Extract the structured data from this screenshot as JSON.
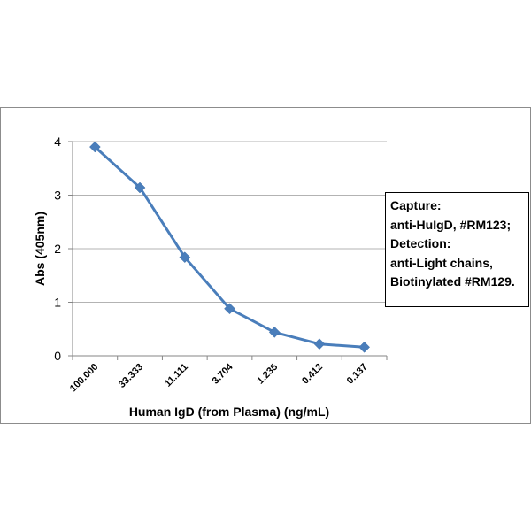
{
  "chart_data": {
    "type": "line",
    "title": "",
    "xlabel": "Human IgD (from Plasma) (ng/mL)",
    "ylabel": "Abs (405nm)",
    "categories": [
      "100.000",
      "33.333",
      "11.111",
      "3.704",
      "1.235",
      "0.412",
      "0.137"
    ],
    "series": [
      {
        "values": [
          3.9,
          3.14,
          1.84,
          0.88,
          0.44,
          0.22,
          0.16
        ]
      }
    ],
    "ylim": [
      0,
      4
    ],
    "yticks": [
      0,
      1,
      2,
      3,
      4
    ],
    "grid": true,
    "marker": "diamond",
    "line_color": "#4a7ebb",
    "marker_color": "#4a7ebb",
    "annotation": {
      "lines": [
        "Capture:",
        "anti-HuIgD, #RM123;",
        "Detection:",
        "anti-Light chains,",
        "Biotinylated #RM129."
      ]
    }
  }
}
